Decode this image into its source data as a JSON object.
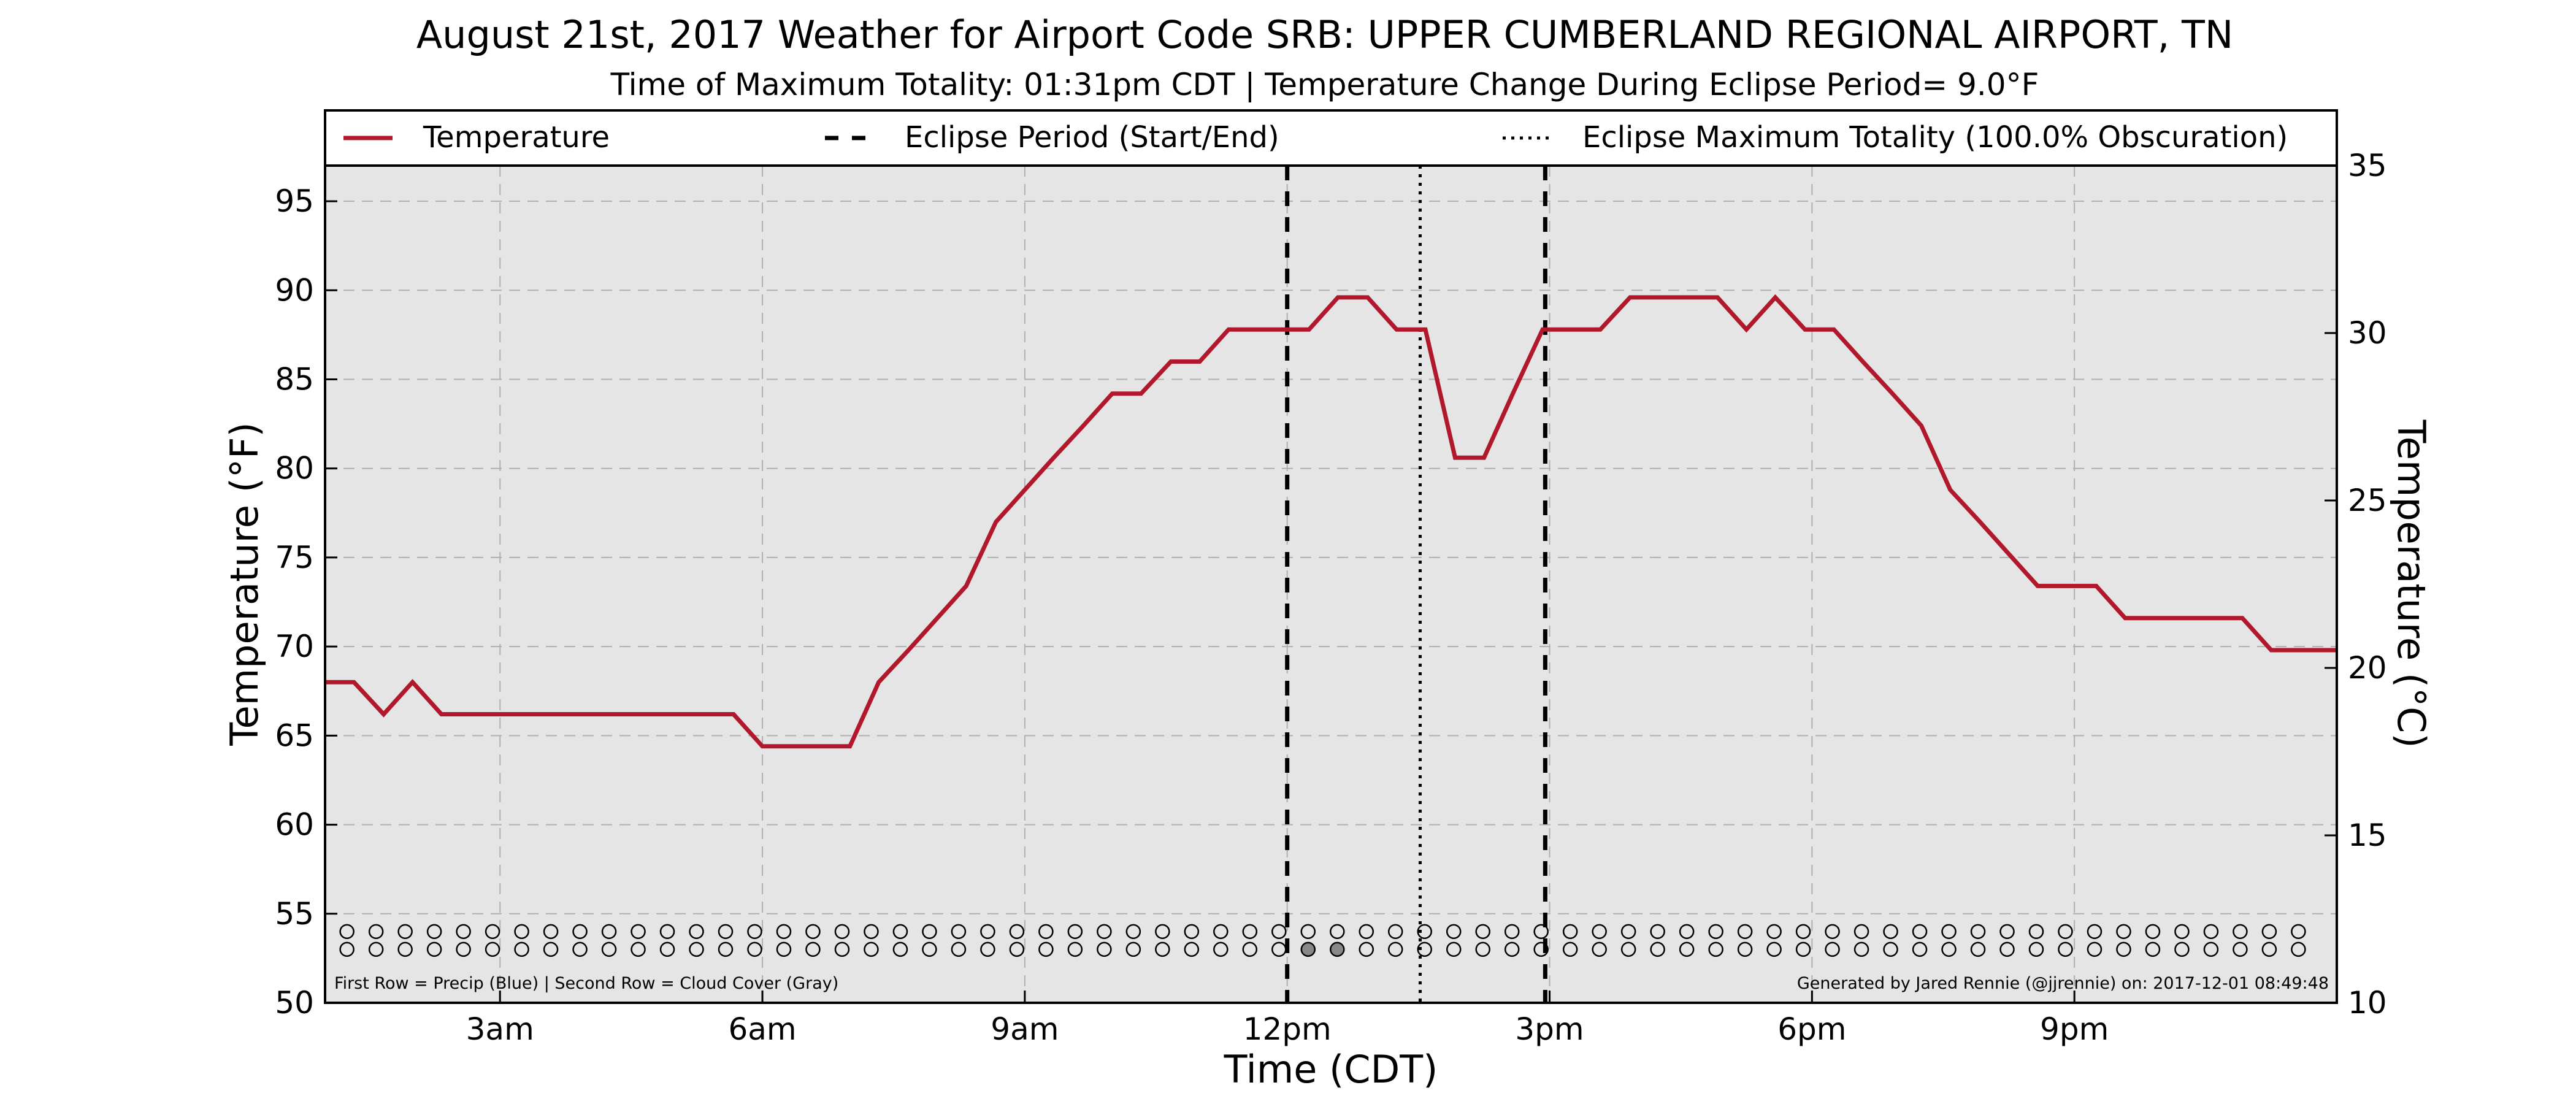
{
  "chart_data": {
    "type": "line",
    "title": "August 21st, 2017 Weather for Airport Code SRB: UPPER CUMBERLAND REGIONAL AIRPORT, TN",
    "subtitle": "Time of Maximum Totality: 01:31pm CDT | Temperature Change During Eclipse Period= 9.0°F",
    "xlabel": "Time (CDT)",
    "ylabel": "Temperature (°F)",
    "ylabel_right": "Temperature (°C)",
    "x_units": "hours after midnight CDT",
    "xlim": [
      1.0,
      24.0
    ],
    "ylim": [
      50,
      97
    ],
    "ylim_right": [
      10,
      35.0
    ],
    "x_ticks": [
      {
        "x": 3,
        "label": "3am"
      },
      {
        "x": 6,
        "label": "6am"
      },
      {
        "x": 9,
        "label": "9am"
      },
      {
        "x": 12,
        "label": "12pm"
      },
      {
        "x": 15,
        "label": "3pm"
      },
      {
        "x": 18,
        "label": "6pm"
      },
      {
        "x": 21,
        "label": "9pm"
      }
    ],
    "y_ticks": [
      50,
      55,
      60,
      65,
      70,
      75,
      80,
      85,
      90,
      95
    ],
    "y_ticks_right": [
      10,
      15,
      20,
      25,
      30,
      35
    ],
    "grid": true,
    "legend_position": "top",
    "legend": [
      {
        "label": "Temperature",
        "style": "solid",
        "color": "#b2182b"
      },
      {
        "label": "Eclipse Period (Start/End)",
        "style": "dashed",
        "color": "#000000"
      },
      {
        "label": "Eclipse Maximum Totality (100.0% Obscuration)",
        "style": "dotted",
        "color": "#000000"
      }
    ],
    "series": [
      {
        "name": "Temperature",
        "color": "#b2182b",
        "x": [
          1.0,
          1.33,
          1.67,
          2.0,
          2.33,
          2.67,
          3.0,
          3.33,
          3.67,
          4.0,
          4.33,
          4.67,
          5.0,
          5.33,
          5.67,
          6.0,
          6.33,
          6.67,
          7.0,
          7.33,
          7.67,
          8.0,
          8.33,
          8.67,
          9.0,
          9.33,
          9.67,
          10.0,
          10.33,
          10.67,
          11.0,
          11.33,
          11.67,
          12.0,
          12.25,
          12.58,
          12.92,
          13.25,
          13.58,
          13.92,
          14.25,
          14.58,
          14.92,
          15.25,
          15.58,
          15.92,
          16.25,
          16.58,
          16.92,
          17.25,
          17.58,
          17.92,
          18.25,
          18.58,
          18.92,
          19.25,
          19.58,
          19.92,
          20.25,
          20.58,
          20.92,
          21.25,
          21.58,
          21.92,
          22.25,
          22.58,
          22.92,
          23.25,
          23.58,
          24.0
        ],
        "y": [
          68.0,
          68.0,
          66.2,
          68.0,
          66.2,
          66.2,
          66.2,
          66.2,
          66.2,
          66.2,
          66.2,
          66.2,
          66.2,
          66.2,
          66.2,
          64.4,
          64.4,
          64.4,
          64.4,
          68.0,
          69.8,
          71.6,
          73.4,
          77.0,
          78.8,
          80.6,
          82.4,
          84.2,
          84.2,
          86.0,
          86.0,
          87.8,
          87.8,
          87.8,
          87.8,
          89.6,
          89.6,
          87.8,
          87.8,
          80.6,
          80.6,
          84.2,
          87.8,
          87.8,
          87.8,
          89.6,
          89.6,
          89.6,
          89.6,
          87.8,
          89.6,
          87.8,
          87.8,
          86.0,
          84.2,
          82.4,
          78.8,
          77.0,
          75.2,
          73.4,
          73.4,
          73.4,
          71.6,
          71.6,
          71.6,
          71.6,
          71.6,
          69.8,
          69.8,
          69.8
        ]
      }
    ],
    "vertical_lines": [
      {
        "name": "eclipse-start",
        "x": 12.0,
        "style": "dashed"
      },
      {
        "name": "eclipse-maximum",
        "x": 13.52,
        "style": "dotted"
      },
      {
        "name": "eclipse-end",
        "x": 14.95,
        "style": "dashed"
      }
    ],
    "marker_rows": {
      "precip_y": 54.0,
      "cloud_y": 53.0,
      "x_start": 1.25,
      "x_step": 0.333,
      "count": 68,
      "filled_cloud_indices": [
        33,
        34
      ],
      "filled_color": "#888888"
    },
    "annotations": {
      "left": "First Row = Precip (Blue) | Second Row = Cloud Cover (Gray)",
      "right": "Generated by Jared Rennie (@jjrennie) on: 2017-12-01 08:49:48"
    },
    "colors": {
      "plot_background": "#e5e5e5",
      "grid": "#b0b0b0",
      "temperature": "#b2182b"
    }
  }
}
